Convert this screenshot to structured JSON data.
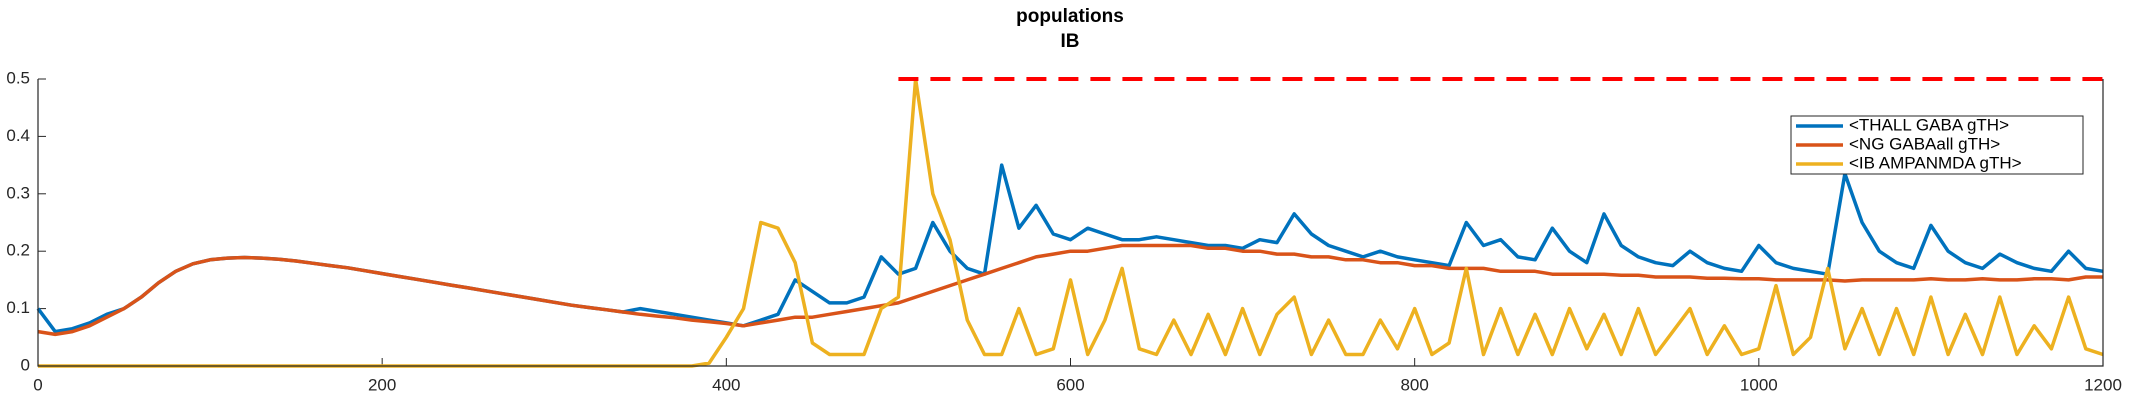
{
  "chart_data": {
    "type": "line",
    "title": [
      "populations",
      "IB"
    ],
    "x": [
      0,
      10,
      20,
      30,
      40,
      50,
      60,
      70,
      80,
      90,
      100,
      110,
      120,
      130,
      140,
      150,
      160,
      170,
      180,
      190,
      200,
      210,
      220,
      230,
      240,
      250,
      260,
      270,
      280,
      290,
      300,
      310,
      320,
      330,
      340,
      350,
      360,
      370,
      380,
      390,
      400,
      410,
      420,
      430,
      440,
      450,
      460,
      470,
      480,
      490,
      500,
      510,
      520,
      530,
      540,
      550,
      560,
      570,
      580,
      590,
      600,
      610,
      620,
      630,
      640,
      650,
      660,
      670,
      680,
      690,
      700,
      710,
      720,
      730,
      740,
      750,
      760,
      770,
      780,
      790,
      800,
      810,
      820,
      830,
      840,
      850,
      860,
      870,
      880,
      890,
      900,
      910,
      920,
      930,
      940,
      950,
      960,
      970,
      980,
      990,
      1000,
      1010,
      1020,
      1030,
      1040,
      1050,
      1060,
      1070,
      1080,
      1090,
      1100,
      1110,
      1120,
      1130,
      1140,
      1150,
      1160,
      1170,
      1180,
      1190,
      1200
    ],
    "series": [
      {
        "name": "<THALL GABA gTH>",
        "color": "#0072bd",
        "values": [
          0.1,
          0.06,
          0.065,
          0.075,
          0.09,
          0.1,
          0.12,
          0.145,
          0.165,
          0.178,
          0.185,
          0.188,
          0.189,
          0.188,
          0.186,
          0.183,
          0.179,
          0.175,
          0.171,
          0.166,
          0.161,
          0.156,
          0.151,
          0.146,
          0.141,
          0.136,
          0.131,
          0.126,
          0.121,
          0.116,
          0.111,
          0.106,
          0.102,
          0.098,
          0.094,
          0.1,
          0.095,
          0.09,
          0.085,
          0.08,
          0.075,
          0.07,
          0.08,
          0.09,
          0.15,
          0.13,
          0.11,
          0.11,
          0.12,
          0.19,
          0.16,
          0.17,
          0.25,
          0.2,
          0.17,
          0.16,
          0.35,
          0.24,
          0.28,
          0.23,
          0.22,
          0.24,
          0.23,
          0.22,
          0.22,
          0.225,
          0.22,
          0.215,
          0.21,
          0.21,
          0.205,
          0.22,
          0.215,
          0.265,
          0.23,
          0.21,
          0.2,
          0.19,
          0.2,
          0.19,
          0.185,
          0.18,
          0.175,
          0.25,
          0.21,
          0.22,
          0.19,
          0.185,
          0.24,
          0.2,
          0.18,
          0.265,
          0.21,
          0.19,
          0.18,
          0.175,
          0.2,
          0.18,
          0.17,
          0.165,
          0.21,
          0.18,
          0.17,
          0.165,
          0.16,
          0.335,
          0.25,
          0.2,
          0.18,
          0.17,
          0.245,
          0.2,
          0.18,
          0.17,
          0.195,
          0.18,
          0.17,
          0.165,
          0.2,
          0.17,
          0.165
        ]
      },
      {
        "name": "<NG GABAall gTH>",
        "color": "#d95319",
        "values": [
          0.06,
          0.055,
          0.06,
          0.07,
          0.085,
          0.1,
          0.12,
          0.145,
          0.165,
          0.178,
          0.185,
          0.188,
          0.189,
          0.188,
          0.186,
          0.183,
          0.179,
          0.175,
          0.171,
          0.166,
          0.161,
          0.156,
          0.151,
          0.146,
          0.141,
          0.136,
          0.131,
          0.126,
          0.121,
          0.116,
          0.111,
          0.106,
          0.102,
          0.098,
          0.094,
          0.09,
          0.087,
          0.084,
          0.08,
          0.077,
          0.074,
          0.07,
          0.075,
          0.08,
          0.085,
          0.085,
          0.09,
          0.095,
          0.1,
          0.105,
          0.11,
          0.12,
          0.13,
          0.14,
          0.15,
          0.16,
          0.17,
          0.18,
          0.19,
          0.195,
          0.2,
          0.2,
          0.205,
          0.21,
          0.21,
          0.21,
          0.21,
          0.21,
          0.205,
          0.205,
          0.2,
          0.2,
          0.195,
          0.195,
          0.19,
          0.19,
          0.185,
          0.185,
          0.18,
          0.18,
          0.175,
          0.175,
          0.17,
          0.17,
          0.17,
          0.165,
          0.165,
          0.165,
          0.16,
          0.16,
          0.16,
          0.16,
          0.158,
          0.158,
          0.155,
          0.155,
          0.155,
          0.153,
          0.153,
          0.152,
          0.152,
          0.15,
          0.15,
          0.15,
          0.15,
          0.148,
          0.15,
          0.15,
          0.15,
          0.15,
          0.152,
          0.15,
          0.15,
          0.152,
          0.15,
          0.15,
          0.152,
          0.152,
          0.15,
          0.155,
          0.155
        ]
      },
      {
        "name": "<IB AMPANMDA gTH>",
        "color": "#edb120",
        "values": [
          0,
          0,
          0,
          0,
          0,
          0,
          0,
          0,
          0,
          0,
          0,
          0,
          0,
          0,
          0,
          0,
          0,
          0,
          0,
          0,
          0,
          0,
          0,
          0,
          0,
          0,
          0,
          0,
          0,
          0,
          0,
          0,
          0,
          0,
          0,
          0,
          0,
          0,
          0,
          0.005,
          0.05,
          0.1,
          0.25,
          0.24,
          0.18,
          0.04,
          0.02,
          0.02,
          0.02,
          0.1,
          0.12,
          0.5,
          0.3,
          0.22,
          0.08,
          0.02,
          0.02,
          0.1,
          0.02,
          0.03,
          0.15,
          0.02,
          0.08,
          0.17,
          0.03,
          0.02,
          0.08,
          0.02,
          0.09,
          0.02,
          0.1,
          0.02,
          0.09,
          0.12,
          0.02,
          0.08,
          0.02,
          0.02,
          0.08,
          0.03,
          0.1,
          0.02,
          0.04,
          0.17,
          0.02,
          0.1,
          0.02,
          0.09,
          0.02,
          0.1,
          0.03,
          0.09,
          0.02,
          0.1,
          0.02,
          0.06,
          0.1,
          0.02,
          0.07,
          0.02,
          0.03,
          0.14,
          0.02,
          0.05,
          0.17,
          0.03,
          0.1,
          0.02,
          0.1,
          0.02,
          0.12,
          0.02,
          0.09,
          0.02,
          0.12,
          0.02,
          0.07,
          0.03,
          0.12,
          0.03,
          0.02
        ]
      }
    ],
    "hline": {
      "value": 0.5,
      "xstart": 500,
      "xend": 1200,
      "color": "#ff0000",
      "dashed": true
    },
    "xlim": [
      0,
      1200
    ],
    "xticks": [
      0,
      200,
      400,
      600,
      800,
      1000,
      1200
    ],
    "ylim": [
      0,
      0.5
    ],
    "yticks": [
      0,
      0.1,
      0.2,
      0.3,
      0.4,
      0.5
    ],
    "legend": "upper right"
  }
}
